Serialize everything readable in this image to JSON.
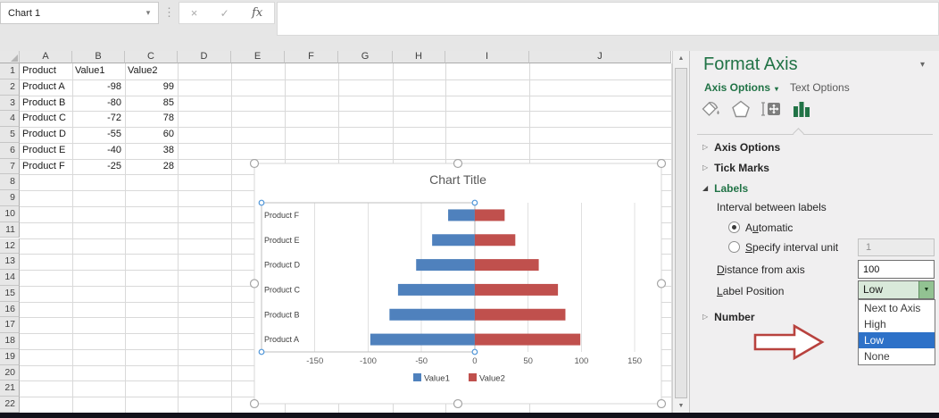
{
  "name_box": {
    "value": "Chart 1"
  },
  "glyphs": {
    "name_box_arrow": "▾",
    "dots_separator": "⋮",
    "cancel": "×",
    "check": "✓",
    "fx": "fx",
    "scroll_up": "▲",
    "scroll_down": "▼",
    "triangle_collapsed": "▷",
    "triangle_expanded": "◢",
    "pane_collapse": "▾",
    "tab_dropdown": "▾",
    "combo_arrow": "▼"
  },
  "sheet": {
    "col_headers": [
      "A",
      "B",
      "C",
      "D",
      "E",
      "F",
      "G",
      "H",
      "I",
      "J"
    ],
    "row_count": 22,
    "cell_rows": [
      [
        "Product",
        "Value1",
        "Value2"
      ],
      [
        "Product A",
        "-98",
        "99"
      ],
      [
        "Product B",
        "-80",
        "85"
      ],
      [
        "Product C",
        "-72",
        "78"
      ],
      [
        "Product D",
        "-55",
        "60"
      ],
      [
        "Product E",
        "-40",
        "38"
      ],
      [
        "Product F",
        "-25",
        "28"
      ]
    ]
  },
  "chart_data": {
    "type": "bar",
    "orientation": "horizontal",
    "title": "Chart Title",
    "categories": [
      "Product F",
      "Product E",
      "Product D",
      "Product C",
      "Product B",
      "Product A"
    ],
    "series": [
      {
        "name": "Value1",
        "color": "#4F81BD",
        "values": [
          -25,
          -40,
          -55,
          -72,
          -80,
          -98
        ]
      },
      {
        "name": "Value2",
        "color": "#C0504D",
        "values": [
          28,
          38,
          60,
          78,
          85,
          99
        ]
      }
    ],
    "x_ticks": [
      -150,
      -100,
      -50,
      0,
      50,
      100,
      150
    ],
    "xlim": [
      -200,
      170
    ],
    "legend_position": "bottom",
    "category_axis_selected": true,
    "category_label_position": "low-end-of-axis"
  },
  "panel": {
    "title": "Format Axis",
    "tabs": [
      {
        "label": "Axis Options"
      },
      {
        "label": "Text Options"
      }
    ],
    "icon_tabs": [
      "fill-line",
      "effects",
      "size-properties",
      "axis-options"
    ],
    "active_icon_tab": "axis-options",
    "sections": {
      "axis_options": "Axis Options",
      "tick_marks": "Tick Marks",
      "labels": "Labels",
      "number": "Number"
    },
    "labels_section": {
      "interval_heading": "Interval between labels",
      "automatic": {
        "pre": "A",
        "mn": "u",
        "post": "tomatic",
        "checked": true
      },
      "specify": {
        "pre": "",
        "mn": "S",
        "post": "pecify interval unit",
        "checked": false,
        "value": "1"
      },
      "distance": {
        "pre": "",
        "mn": "D",
        "post": "istance from axis",
        "value": "100"
      },
      "position": {
        "pre": "",
        "mn": "L",
        "post": "abel Position",
        "value": "Low"
      },
      "position_dropdown": {
        "items": [
          "Next to Axis",
          "High",
          "Low",
          "None"
        ],
        "selected": "Low"
      }
    }
  },
  "colors": {
    "excel_green": "#217346",
    "series1_blue": "#4F81BD",
    "series2_red": "#C0504D",
    "dropdown_highlight": "#2D71C8",
    "annotation_arrow_red": "#B8423E",
    "axis_handle_blue": "#4F96D9"
  }
}
